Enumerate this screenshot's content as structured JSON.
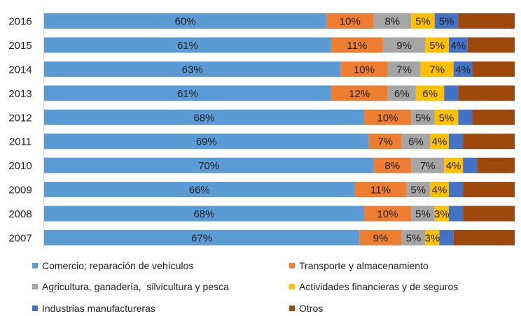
{
  "chart_data": {
    "type": "bar",
    "orientation": "horizontal",
    "stacked": "percent",
    "title": "",
    "xlabel": "",
    "ylabel": "",
    "grid": false,
    "legend_position": "bottom",
    "categories": [
      "2016",
      "2015",
      "2014",
      "2013",
      "2012",
      "2011",
      "2010",
      "2009",
      "2008",
      "2007"
    ],
    "series": [
      {
        "name": "Comercio; reparación de vehículos",
        "color": "#5b9bd5",
        "values": [
          60,
          61,
          63,
          61,
          68,
          69,
          70,
          66,
          68,
          67
        ],
        "labels": [
          "60%",
          "61%",
          "63%",
          "61%",
          "68%",
          "69%",
          "70%",
          "66%",
          "68%",
          "67%"
        ]
      },
      {
        "name": "Transporte y almacenamiento",
        "color": "#ed7d31",
        "values": [
          10,
          11,
          10,
          12,
          10,
          7,
          8,
          11,
          10,
          9
        ],
        "labels": [
          "10%",
          "11%",
          "10%",
          "12%",
          "10%",
          "7%",
          "8%",
          "11%",
          "10%",
          "9%"
        ]
      },
      {
        "name": "Agricultura, ganadería,  silvicultura y pesca",
        "color": "#a5a5a5",
        "values": [
          8,
          9,
          7,
          6,
          5,
          6,
          7,
          5,
          5,
          5
        ],
        "labels": [
          "8%",
          "9%",
          "7%",
          "6%",
          "5%",
          "6%",
          "7%",
          "5%",
          "5%",
          "5%"
        ]
      },
      {
        "name": "Actividades financieras y de seguros",
        "color": "#ffc000",
        "values": [
          5,
          5,
          7,
          6,
          5,
          4,
          4,
          4,
          3,
          3
        ],
        "labels": [
          "5%",
          "5%",
          "7%",
          "6%",
          "5%",
          "4%",
          "4%",
          "4%",
          "3%",
          "3%"
        ]
      },
      {
        "name": "Industrias manufactureras",
        "color": "#4472c4",
        "values": [
          5,
          4,
          4,
          3,
          3,
          3,
          3,
          3,
          3,
          3
        ],
        "labels": [
          "5%",
          "4%",
          "4%",
          "",
          "",
          "",
          "",
          "",
          "",
          ""
        ]
      },
      {
        "name": "Otros",
        "color": "#9e480e",
        "values": [
          12,
          10,
          9,
          12,
          9,
          11,
          8,
          11,
          11,
          13
        ],
        "labels": [
          "",
          "",
          "",
          "",
          "",
          "",
          "",
          "",
          "",
          ""
        ]
      }
    ]
  }
}
